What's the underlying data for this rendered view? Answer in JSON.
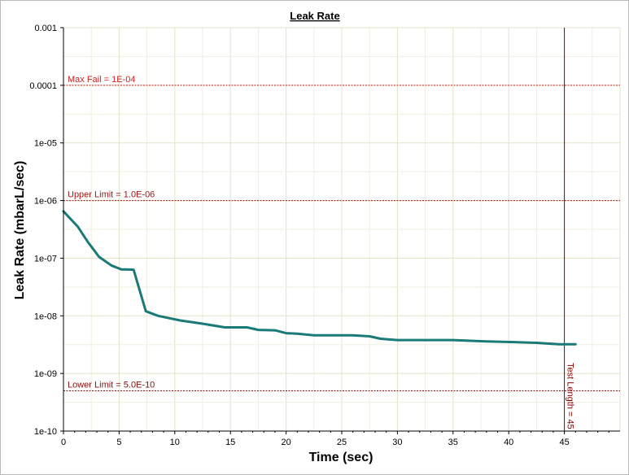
{
  "chart_data": {
    "type": "line",
    "title": "Leak Rate",
    "xlabel": "Time (sec)",
    "ylabel": "Leak Rate (mbarL/sec)",
    "xlim": [
      0,
      50
    ],
    "ylim": [
      1e-10,
      0.001
    ],
    "yscale": "log",
    "grid": true,
    "x_ticks": [
      0,
      5,
      10,
      15,
      20,
      25,
      30,
      35,
      40,
      45
    ],
    "x_tick_labels": [
      "0",
      "5",
      "10",
      "15",
      "20",
      "25",
      "30",
      "35",
      "40",
      "45"
    ],
    "y_ticks": [
      1e-10,
      1e-09,
      1e-08,
      1e-07,
      1e-06,
      1e-05,
      0.0001,
      0.001
    ],
    "y_tick_labels": [
      "1e-10",
      "1e-09",
      "1e-08",
      "1e-07",
      "1e-06",
      "1e-05",
      "0.0001",
      "0.001"
    ],
    "series": [
      {
        "color": "#1a7a78",
        "x": [
          0,
          1.3,
          2.2,
          3.2,
          4.3,
          5.2,
          5.6,
          6.3,
          7.4,
          8.5,
          10.5,
          12.5,
          14.5,
          16.5,
          17.5,
          19,
          20,
          21,
          22.5,
          24,
          26,
          27.5,
          28.5,
          30,
          32,
          35,
          38,
          40.5,
          42.5,
          44.5,
          46
        ],
        "y": [
          6.5e-07,
          3.5e-07,
          1.9e-07,
          1.05e-07,
          7.5e-08,
          6.4e-08,
          6.4e-08,
          6.3e-08,
          1.2e-08,
          1e-08,
          8.3e-09,
          7.3e-09,
          6.3e-09,
          6.3e-09,
          5.7e-09,
          5.6e-09,
          5e-09,
          4.9e-09,
          4.6e-09,
          4.6e-09,
          4.6e-09,
          4.4e-09,
          4e-09,
          3.8e-09,
          3.8e-09,
          3.8e-09,
          3.6e-09,
          3.5e-09,
          3.4e-09,
          3.2e-09,
          3.2e-09
        ]
      }
    ],
    "horizontal_lines": [
      {
        "label": "Max Fail = 1E-04",
        "y": 0.0001,
        "color": "#cc2222"
      },
      {
        "label": "Upper Limit = 1.0E-06",
        "y": 1e-06,
        "color": "#a01818"
      },
      {
        "label": "Lower Limit = 5.0E-10",
        "y": 5e-10,
        "color": "#8b1010"
      }
    ],
    "vertical_lines": [
      {
        "label": "Test Length = 45",
        "x": 45,
        "color": "#8b0000"
      }
    ]
  }
}
